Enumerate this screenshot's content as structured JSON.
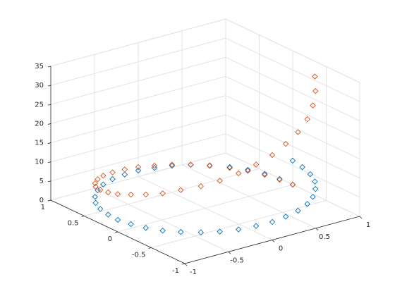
{
  "chart_data": {
    "type": "scatter3",
    "xlim": [
      -1,
      1
    ],
    "ylim": [
      -1,
      1
    ],
    "zlim": [
      0,
      35
    ],
    "xticks": [
      -1,
      -0.5,
      0,
      0.5,
      1
    ],
    "yticks": [
      -1,
      -0.5,
      0,
      0.5,
      1
    ],
    "zticks": [
      0,
      5,
      10,
      15,
      20,
      25,
      30,
      35
    ],
    "grid": true,
    "marker": "diamond",
    "series": [
      {
        "color": "#0072bd",
        "x": [
          1,
          0.98,
          0.94,
          0.87,
          0.77,
          0.64,
          0.5,
          0.34,
          0.17,
          0,
          -0.17,
          -0.34,
          -0.5,
          -0.64,
          -0.77,
          -0.87,
          -0.94,
          -0.98,
          -1,
          -0.98,
          -0.94,
          -0.87,
          -0.77,
          -0.64,
          -0.5,
          -0.34,
          -0.17,
          0,
          0.17,
          0.34,
          0.5,
          0.64,
          0.77,
          0.87,
          0.94,
          0.98,
          1
        ],
        "y": [
          0,
          0.17,
          0.34,
          0.5,
          0.64,
          0.77,
          0.87,
          0.94,
          0.98,
          1,
          0.98,
          0.94,
          0.87,
          0.77,
          0.64,
          0.5,
          0.34,
          0.17,
          0,
          -0.17,
          -0.34,
          -0.5,
          -0.64,
          -0.77,
          -0.87,
          -0.94,
          -0.98,
          -1,
          -0.98,
          -0.94,
          -0.87,
          -0.77,
          -0.64,
          -0.5,
          -0.34,
          -0.17,
          0
        ],
        "z": [
          0,
          0.17,
          0.35,
          0.52,
          0.7,
          0.87,
          1.05,
          1.22,
          1.4,
          1.57,
          1.75,
          1.92,
          2.09,
          2.27,
          2.44,
          2.62,
          2.79,
          2.97,
          3.14,
          3.32,
          3.49,
          3.67,
          3.84,
          4.01,
          4.19,
          4.36,
          4.54,
          4.71,
          4.89,
          5.06,
          5.24,
          5.41,
          5.59,
          5.76,
          5.93,
          6.11,
          6.28
        ]
      },
      {
        "color": "#d95319",
        "x": [
          1,
          0.98,
          0.94,
          0.87,
          0.77,
          0.64,
          0.5,
          0.34,
          0.17,
          0,
          -0.17,
          -0.34,
          -0.5,
          -0.64,
          -0.77,
          -0.87,
          -0.94,
          -0.98,
          -1,
          -0.98,
          -0.94,
          -0.87,
          -0.77,
          -0.64,
          -0.5,
          -0.34,
          -0.17,
          0,
          0.17,
          0.34,
          0.5,
          0.64,
          0.77,
          0.87
        ],
        "y": [
          0,
          0.17,
          0.34,
          0.5,
          0.64,
          0.77,
          0.87,
          0.94,
          0.98,
          1,
          0.98,
          0.94,
          0.87,
          0.77,
          0.64,
          0.5,
          0.34,
          0.17,
          0,
          -0.17,
          -0.34,
          -0.5,
          -0.64,
          -0.77,
          -0.87,
          -0.94,
          -0.98,
          -1,
          -0.98,
          -0.94,
          -0.87,
          -0.77,
          -0.64,
          -0.5
        ],
        "z": [
          0,
          0.03,
          0.12,
          0.27,
          0.49,
          0.76,
          1.1,
          1.49,
          1.95,
          2.47,
          3.05,
          3.69,
          4.39,
          5.15,
          5.97,
          6.85,
          7.8,
          8.81,
          9.87,
          11,
          12.2,
          13.4,
          14.8,
          16.1,
          17.5,
          19,
          20.6,
          22.2,
          23.9,
          25.6,
          27.4,
          29.3,
          31.2,
          33.2
        ]
      }
    ]
  }
}
